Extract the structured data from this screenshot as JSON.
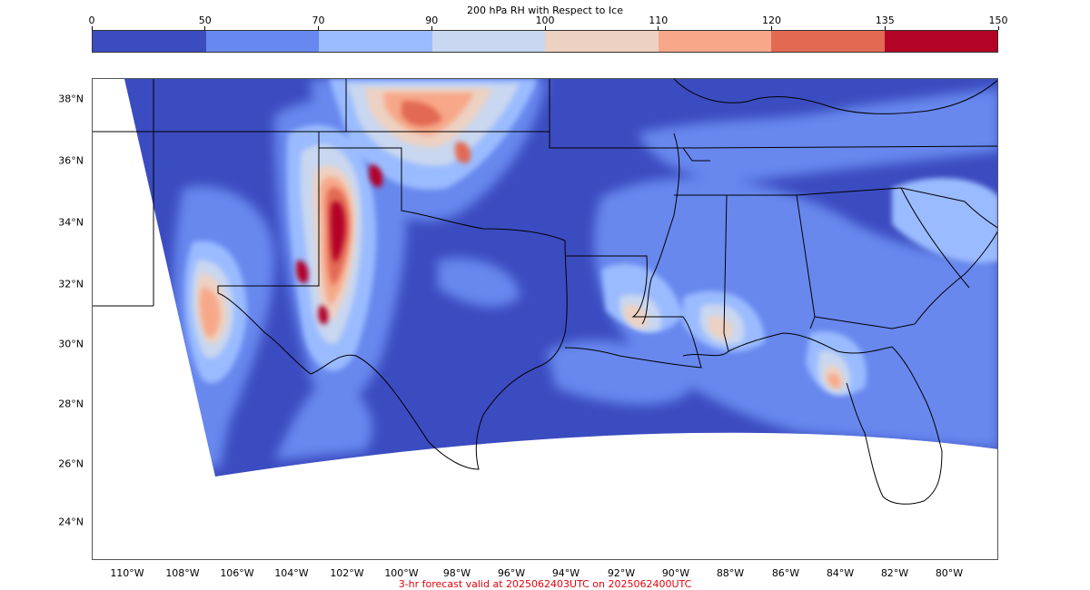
{
  "colorbar": {
    "title": "200 hPa RH with Respect to Ice",
    "ticks": [
      "0",
      "50",
      "70",
      "90",
      "100",
      "110",
      "120",
      "135",
      "150"
    ],
    "colors": [
      "#3b4cc0",
      "#6788ee",
      "#9abbff",
      "#c9d7f0",
      "#edd1c2",
      "#f7a889",
      "#e26952",
      "#b40426"
    ]
  },
  "map": {
    "lat_labels": [
      "38°N",
      "36°N",
      "34°N",
      "32°N",
      "30°N",
      "28°N",
      "26°N",
      "24°N"
    ],
    "lon_labels": [
      "110°W",
      "108°W",
      "106°W",
      "104°W",
      "102°W",
      "100°W",
      "98°W",
      "96°W",
      "94°W",
      "92°W",
      "90°W",
      "88°W",
      "86°W",
      "84°W",
      "82°W",
      "80°W"
    ],
    "field_background": "#3b4cc0"
  },
  "caption": "3-hr forecast valid at 2025062403UTC on 2025062400UTC"
}
